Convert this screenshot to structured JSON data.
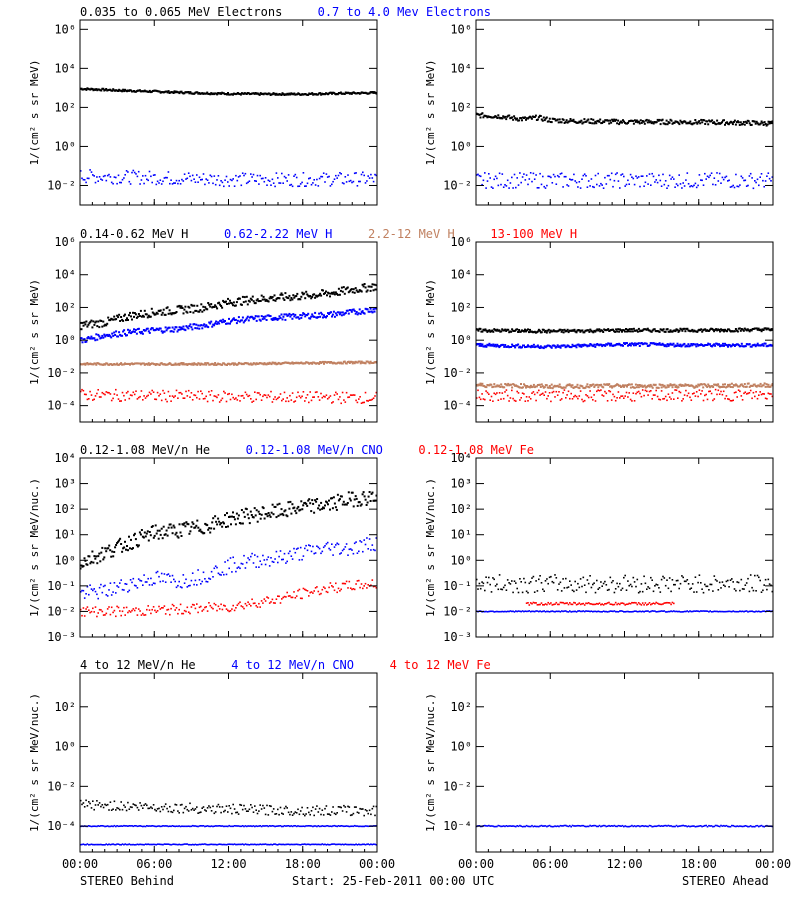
{
  "colors": {
    "black": "#000000",
    "blue": "#0000ff",
    "tan": "#c08060",
    "red": "#ff0000"
  },
  "footer": {
    "left": "STEREO Behind",
    "center": "Start: 25-Feb-2011 00:00 UTC",
    "right": "STEREO Ahead"
  },
  "chart_data": [
    {
      "type": "scatter",
      "panel": "row1-left",
      "ylabel": "1/(cm² s sr MeV)",
      "y_scale": "log",
      "ylim": [
        0.001,
        3000000
      ],
      "xlim": [
        0,
        24
      ],
      "x_tick_labels": [
        "00:00",
        "06:00",
        "12:00",
        "18:00",
        "00:00"
      ],
      "y_ticks": [
        {
          "exp": -2
        },
        {
          "exp": 0
        },
        {
          "exp": 2
        },
        {
          "exp": 4
        },
        {
          "exp": 6
        }
      ],
      "legend": [
        {
          "name": "0.035 to 0.065 MeV Electrons",
          "color": "#000000"
        },
        {
          "name": "0.7 to 4.0 Mev Electrons",
          "color": "#0000ff"
        }
      ],
      "series": [
        {
          "color": "#000000",
          "style": "line",
          "x": [
            0,
            3,
            6,
            9,
            12,
            15,
            18,
            21,
            24
          ],
          "y": [
            900,
            750,
            650,
            560,
            500,
            480,
            480,
            520,
            560
          ]
        },
        {
          "color": "#0000ff",
          "style": "dots",
          "x": [
            0,
            6,
            12,
            18,
            24
          ],
          "y": [
            0.03,
            0.025,
            0.02,
            0.02,
            0.022
          ],
          "spread": 0.35
        }
      ]
    },
    {
      "type": "scatter",
      "panel": "row1-right",
      "ylabel": "1/(cm² s sr MeV)",
      "y_scale": "log",
      "ylim": [
        0.001,
        3000000
      ],
      "xlim": [
        0,
        24
      ],
      "x_tick_labels": [
        "00:00",
        "06:00",
        "12:00",
        "18:00",
        "00:00"
      ],
      "y_ticks": [
        {
          "exp": -2
        },
        {
          "exp": 0
        },
        {
          "exp": 2
        },
        {
          "exp": 4
        },
        {
          "exp": 6
        }
      ],
      "legend": [],
      "series": [
        {
          "color": "#000000",
          "style": "line",
          "x": [
            0,
            2,
            3,
            4,
            5,
            6,
            8,
            12,
            16,
            20,
            24
          ],
          "y": [
            40,
            35,
            28,
            25,
            30,
            22,
            20,
            18,
            18,
            17,
            15
          ],
          "noise": 0.12
        },
        {
          "color": "#0000ff",
          "style": "dots",
          "x": [
            0,
            12,
            24
          ],
          "y": [
            0.018,
            0.018,
            0.018
          ],
          "spread": 0.4
        }
      ]
    },
    {
      "type": "scatter",
      "panel": "row2-left",
      "ylabel": "1/(cm² s sr MeV)",
      "y_scale": "log",
      "ylim": [
        1e-05,
        1000000
      ],
      "xlim": [
        0,
        24
      ],
      "x_tick_labels": [
        "00:00",
        "06:00",
        "12:00",
        "18:00",
        "00:00"
      ],
      "y_ticks": [
        {
          "exp": -4
        },
        {
          "exp": -2
        },
        {
          "exp": 0
        },
        {
          "exp": 2
        },
        {
          "exp": 4
        },
        {
          "exp": 6
        }
      ],
      "legend": [
        {
          "name": "0.14-0.62 MeV H",
          "color": "#000000"
        },
        {
          "name": "0.62-2.22 MeV H",
          "color": "#0000ff"
        },
        {
          "name": "2.2-12 MeV H",
          "color": "#c08060"
        },
        {
          "name": "13-100 MeV H",
          "color": "#ff0000"
        }
      ],
      "series": [
        {
          "color": "#000000",
          "style": "line",
          "x": [
            0,
            2,
            4,
            6,
            8,
            10,
            12,
            14,
            16,
            18,
            20,
            22,
            24
          ],
          "y": [
            8,
            12,
            30,
            50,
            70,
            100,
            200,
            300,
            400,
            500,
            700,
            1200,
            2000
          ],
          "noise": 0.25
        },
        {
          "color": "#0000ff",
          "style": "line",
          "x": [
            0,
            2,
            4,
            6,
            8,
            10,
            12,
            14,
            16,
            18,
            20,
            22,
            24
          ],
          "y": [
            0.9,
            2,
            3,
            4,
            5,
            8,
            15,
            20,
            25,
            30,
            35,
            50,
            80
          ],
          "noise": 0.18
        },
        {
          "color": "#c08060",
          "style": "line",
          "x": [
            0,
            12,
            24
          ],
          "y": [
            0.035,
            0.035,
            0.045
          ],
          "noise": 0.06
        },
        {
          "color": "#ff0000",
          "style": "dots",
          "x": [
            0,
            12,
            24
          ],
          "y": [
            0.00045,
            0.00035,
            0.0003
          ],
          "spread": 0.35
        }
      ]
    },
    {
      "type": "scatter",
      "panel": "row2-right",
      "ylabel": "1/(cm² s sr MeV)",
      "y_scale": "log",
      "ylim": [
        1e-05,
        1000000
      ],
      "xlim": [
        0,
        24
      ],
      "x_tick_labels": [
        "00:00",
        "06:00",
        "12:00",
        "18:00",
        "00:00"
      ],
      "y_ticks": [
        {
          "exp": -4
        },
        {
          "exp": -2
        },
        {
          "exp": 0
        },
        {
          "exp": 2
        },
        {
          "exp": 4
        },
        {
          "exp": 6
        }
      ],
      "legend": [],
      "series": [
        {
          "color": "#000000",
          "style": "line",
          "x": [
            0,
            6,
            12,
            18,
            24
          ],
          "y": [
            4,
            3.5,
            4,
            4,
            4.5
          ],
          "noise": 0.1
        },
        {
          "color": "#0000ff",
          "style": "line",
          "x": [
            0,
            6,
            12,
            18,
            24
          ],
          "y": [
            0.5,
            0.4,
            0.55,
            0.5,
            0.5
          ],
          "noise": 0.1
        },
        {
          "color": "#c08060",
          "style": "line",
          "x": [
            0,
            6,
            12,
            18,
            24
          ],
          "y": [
            0.0018,
            0.0015,
            0.0016,
            0.0016,
            0.0018
          ],
          "noise": 0.12
        },
        {
          "color": "#ff0000",
          "style": "dots",
          "x": [
            0,
            12,
            24
          ],
          "y": [
            0.0004,
            0.0004,
            0.00045
          ],
          "spread": 0.35
        }
      ]
    },
    {
      "type": "scatter",
      "panel": "row3-left",
      "ylabel": "1/(cm² s sr MeV/nuc.)",
      "y_scale": "log",
      "ylim": [
        0.001,
        10000
      ],
      "xlim": [
        0,
        24
      ],
      "x_tick_labels": [
        "00:00",
        "06:00",
        "12:00",
        "18:00",
        "00:00"
      ],
      "y_ticks": [
        {
          "exp": -3
        },
        {
          "exp": -2
        },
        {
          "exp": -1
        },
        {
          "exp": 0
        },
        {
          "exp": 1
        },
        {
          "exp": 2
        },
        {
          "exp": 3
        },
        {
          "exp": 4
        }
      ],
      "legend": [
        {
          "name": "0.12-1.08 MeV/n He",
          "color": "#000000"
        },
        {
          "name": "0.12-1.08 MeV/n CNO",
          "color": "#0000ff"
        },
        {
          "name": "0.12-1.08 MeV Fe",
          "color": "#ff0000"
        }
      ],
      "series": [
        {
          "color": "#000000",
          "style": "line",
          "x": [
            0,
            2,
            4,
            6,
            8,
            10,
            12,
            14,
            16,
            18,
            20,
            22,
            24
          ],
          "y": [
            0.8,
            2,
            5,
            12,
            15,
            20,
            40,
            60,
            80,
            120,
            150,
            250,
            300
          ],
          "noise": 0.3
        },
        {
          "color": "#0000ff",
          "style": "dots",
          "x": [
            0,
            2,
            4,
            6,
            8,
            10,
            12,
            14,
            16,
            18,
            20,
            22,
            24
          ],
          "y": [
            0.05,
            0.06,
            0.12,
            0.2,
            0.15,
            0.25,
            0.6,
            1,
            1.2,
            2,
            3,
            3,
            5
          ],
          "spread": 0.3
        },
        {
          "color": "#ff0000",
          "style": "dots",
          "x": [
            0,
            4,
            8,
            12,
            16,
            18,
            20,
            22,
            24
          ],
          "y": [
            0.01,
            0.01,
            0.012,
            0.015,
            0.03,
            0.05,
            0.08,
            0.1,
            0.12
          ],
          "spread": 0.2
        }
      ]
    },
    {
      "type": "scatter",
      "panel": "row3-right",
      "ylabel": "1/(cm² s sr MeV/nuc.)",
      "y_scale": "log",
      "ylim": [
        0.001,
        10000
      ],
      "xlim": [
        0,
        24
      ],
      "x_tick_labels": [
        "00:00",
        "06:00",
        "12:00",
        "18:00",
        "00:00"
      ],
      "y_ticks": [
        {
          "exp": -3
        },
        {
          "exp": -2
        },
        {
          "exp": -1
        },
        {
          "exp": 0
        },
        {
          "exp": 1
        },
        {
          "exp": 2
        },
        {
          "exp": 3
        },
        {
          "exp": 4
        }
      ],
      "legend": [],
      "series": [
        {
          "color": "#000000",
          "style": "dots",
          "x": [
            0,
            12,
            24
          ],
          "y": [
            0.12,
            0.12,
            0.12
          ],
          "spread": 0.35
        },
        {
          "color": "#0000ff",
          "style": "dots",
          "x": [
            0,
            12,
            24
          ],
          "y": [
            0.01,
            0.01,
            0.01
          ],
          "spread": 0.02
        },
        {
          "color": "#ff0000",
          "style": "dots",
          "x": [
            4,
            12,
            16
          ],
          "y": [
            0.02,
            0.02,
            0.02
          ],
          "spread": 0.05
        }
      ]
    },
    {
      "type": "scatter",
      "panel": "row4-left",
      "ylabel": "1/(cm² s sr MeV/nuc.)",
      "y_scale": "log",
      "ylim": [
        5e-06,
        5000
      ],
      "xlim": [
        0,
        24
      ],
      "x_tick_labels": [
        "00:00",
        "06:00",
        "12:00",
        "18:00",
        "00:00"
      ],
      "y_ticks": [
        {
          "exp": -4
        },
        {
          "exp": -2
        },
        {
          "exp": 0
        },
        {
          "exp": 2
        }
      ],
      "legend": [
        {
          "name": "4 to 12 MeV/n He",
          "color": "#000000"
        },
        {
          "name": "4 to 12 MeV/n CNO",
          "color": "#0000ff"
        },
        {
          "name": "4 to 12 MeV Fe",
          "color": "#ff0000"
        }
      ],
      "series": [
        {
          "color": "#000000",
          "style": "dots",
          "x": [
            0,
            6,
            12,
            18,
            24
          ],
          "y": [
            0.0012,
            0.0009,
            0.0007,
            0.0006,
            0.0006
          ],
          "spread": 0.25
        },
        {
          "color": "#0000ff",
          "style": "dots",
          "x": [
            0,
            6,
            12,
            18,
            24
          ],
          "y": [
            0.0001,
            0.0001,
            0.0001,
            0.0001,
            0.0001
          ],
          "spread": 0.02
        },
        {
          "color": "#0000ff",
          "style": "dots",
          "x": [
            0,
            6,
            12,
            18,
            24
          ],
          "y": [
            1.2e-05,
            1.2e-05,
            1.2e-05,
            1.2e-05,
            1.2e-05
          ],
          "spread": 0.02
        }
      ]
    },
    {
      "type": "scatter",
      "panel": "row4-right",
      "ylabel": "1/(cm² s sr MeV/nuc.)",
      "y_scale": "log",
      "ylim": [
        5e-06,
        5000
      ],
      "xlim": [
        0,
        24
      ],
      "x_tick_labels": [
        "00:00",
        "06:00",
        "12:00",
        "18:00",
        "00:00"
      ],
      "y_ticks": [
        {
          "exp": -4
        },
        {
          "exp": -2
        },
        {
          "exp": 0
        },
        {
          "exp": 2
        }
      ],
      "legend": [],
      "series": [
        {
          "color": "#0000ff",
          "style": "dots",
          "x": [
            0,
            12,
            24
          ],
          "y": [
            0.0001,
            0.0001,
            0.0001
          ],
          "spread": 0.03
        }
      ]
    }
  ]
}
